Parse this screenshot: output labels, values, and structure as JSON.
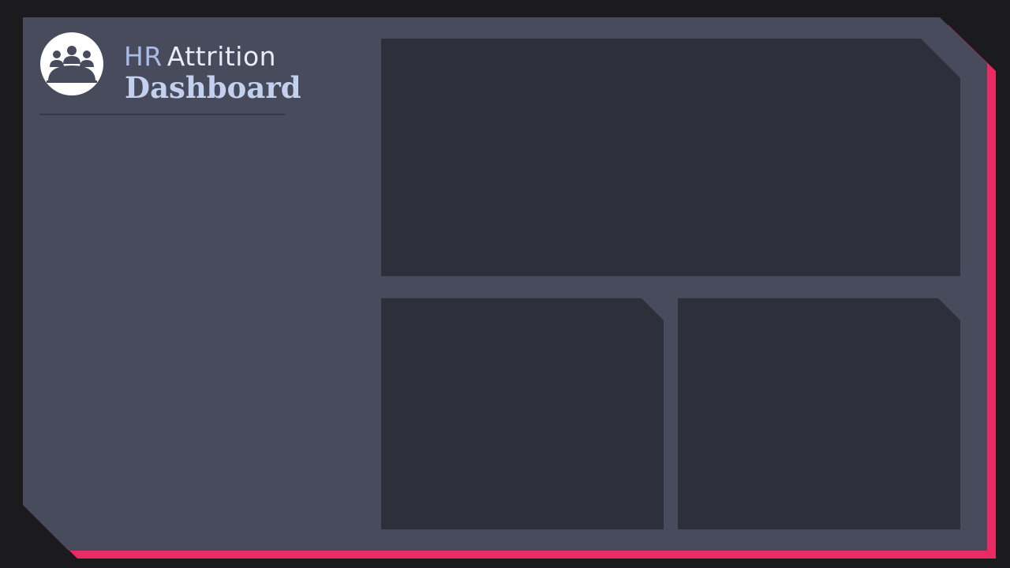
{
  "header": {
    "title_part1": "HR",
    "title_part2": "Attrition",
    "subtitle": "Dashboard",
    "logo_icon": "people-meeting-icon"
  },
  "colors": {
    "background": "#1b1b1d",
    "panel": "#474b5c",
    "card": "#2d2f3b",
    "accent": "#ea2a63",
    "title_light": "#a9bbe8",
    "title_white": "#e9ecf5",
    "subtitle": "#c3d0ee"
  },
  "cards": [
    {
      "id": "top-chart-card",
      "content": ""
    },
    {
      "id": "bottom-left-chart-card",
      "content": ""
    },
    {
      "id": "bottom-right-chart-card",
      "content": ""
    }
  ]
}
